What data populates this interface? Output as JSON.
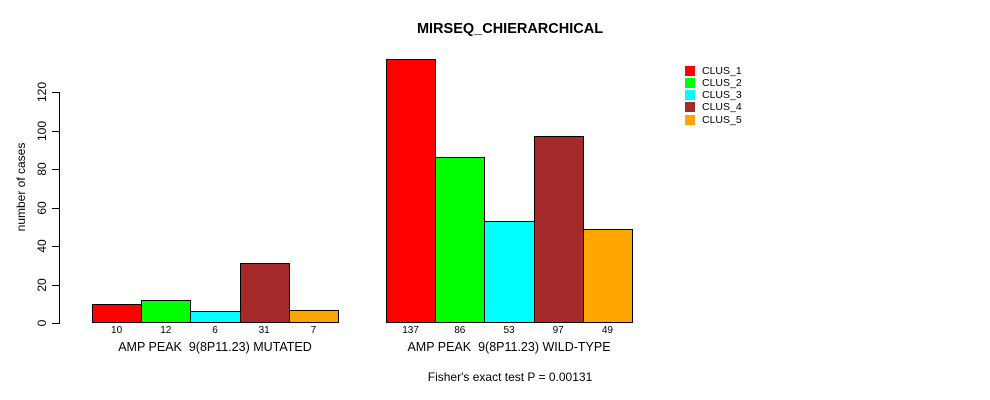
{
  "page": {
    "title": "MIRSEQ_CHIERARCHICAL",
    "footer": "Fisher's exact test P = 0.00131"
  },
  "chart_data": {
    "type": "bar",
    "title": "MIRSEQ_CHIERARCHICAL",
    "xlabel": "",
    "ylabel": "number of cases",
    "ylim": [
      0,
      140
    ],
    "yticks": [
      0,
      20,
      40,
      60,
      80,
      100,
      120
    ],
    "grid": false,
    "legend_position": "right",
    "annotation": "Fisher's exact test P = 0.00131",
    "categories": [
      "AMP PEAK  9(8P11.23) MUTATED",
      "AMP PEAK  9(8P11.23) WILD-TYPE"
    ],
    "series": [
      {
        "name": "CLUS_1",
        "color": "#FF0000",
        "values": [
          10,
          137
        ]
      },
      {
        "name": "CLUS_2",
        "color": "#00FF00",
        "values": [
          12,
          86
        ]
      },
      {
        "name": "CLUS_3",
        "color": "#00FFFF",
        "values": [
          6,
          53
        ]
      },
      {
        "name": "CLUS_4",
        "color": "#A52A2A",
        "values": [
          31,
          97
        ]
      },
      {
        "name": "CLUS_5",
        "color": "#FFA500",
        "values": [
          7,
          49
        ]
      }
    ],
    "bar_value_labels": [
      [
        "10",
        "12",
        "6",
        "31",
        "7"
      ],
      [
        "137",
        "86",
        "53",
        "97",
        "49"
      ]
    ]
  }
}
